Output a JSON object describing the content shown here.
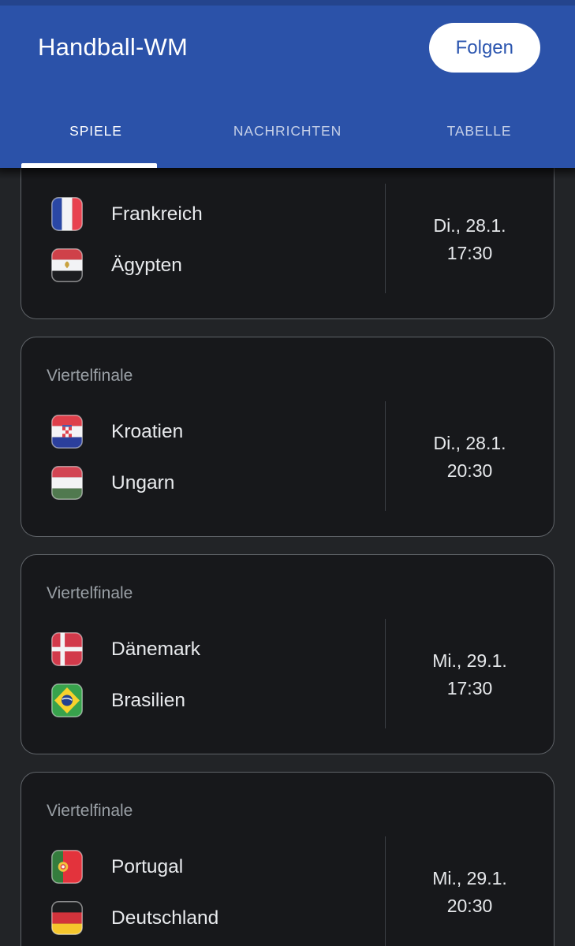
{
  "app": {
    "title": "Handball-WM",
    "follow_button": "Folgen"
  },
  "tabs": [
    {
      "label": "SPIELE",
      "active": true
    },
    {
      "label": "NACHRICHTEN",
      "active": false
    },
    {
      "label": "TABELLE",
      "active": false
    }
  ],
  "matches": [
    {
      "stage": "",
      "teams": [
        {
          "name": "Frankreich",
          "flag": "france"
        },
        {
          "name": "Ägypten",
          "flag": "egypt"
        }
      ],
      "date": "Di., 28.1.",
      "time": "17:30"
    },
    {
      "stage": "Viertelfinale",
      "teams": [
        {
          "name": "Kroatien",
          "flag": "croatia"
        },
        {
          "name": "Ungarn",
          "flag": "hungary"
        }
      ],
      "date": "Di., 28.1.",
      "time": "20:30"
    },
    {
      "stage": "Viertelfinale",
      "teams": [
        {
          "name": "Dänemark",
          "flag": "denmark"
        },
        {
          "name": "Brasilien",
          "flag": "brazil"
        }
      ],
      "date": "Mi., 29.1.",
      "time": "17:30"
    },
    {
      "stage": "Viertelfinale",
      "teams": [
        {
          "name": "Portugal",
          "flag": "portugal"
        },
        {
          "name": "Deutschland",
          "flag": "germany"
        }
      ],
      "date": "Mi., 29.1.",
      "time": "20:30"
    }
  ],
  "colors": {
    "header_bg": "#2b52a9",
    "accent": "#2b55af",
    "page_bg": "#222427",
    "card_bg": "#17181b",
    "card_border": "#5f6368",
    "stage_text": "#9aa0a6",
    "team_text": "#e8eaed",
    "date_text": "#e6e8eb",
    "divider": "#3b3e44",
    "tab_inactive": "rgba(255,255,255,0.72)"
  }
}
